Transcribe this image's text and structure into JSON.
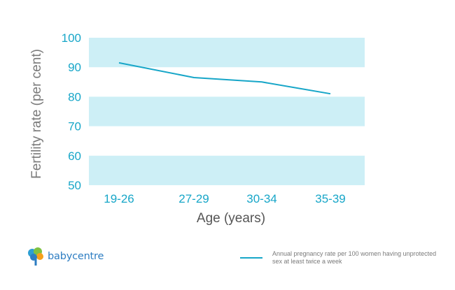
{
  "chart_data": {
    "type": "line",
    "categories": [
      "19-26",
      "27-29",
      "30-34",
      "35-39"
    ],
    "series": [
      {
        "name": "Annual pregnancy rate per 100 women having unprotected sex at least twice a week",
        "values": [
          91.5,
          86.5,
          85,
          81
        ]
      }
    ],
    "xlabel": "Age (years)",
    "ylabel": "Fertility rate (per cent)",
    "ylim": [
      50,
      100
    ],
    "yticks": [
      50,
      60,
      70,
      80,
      90,
      100
    ],
    "band_color": "#cdeff6",
    "line_color": "#17a6c8",
    "tick_color": "#17a6c8",
    "axis_label_color": "#7a7a7a",
    "legend_position": "bottom-right"
  },
  "legend": {
    "text": "Annual pregnancy rate per 100 women having unprotected sex at least twice a week"
  },
  "brand": {
    "name": "babycentre",
    "icon": "babycentre-tree-logo"
  }
}
